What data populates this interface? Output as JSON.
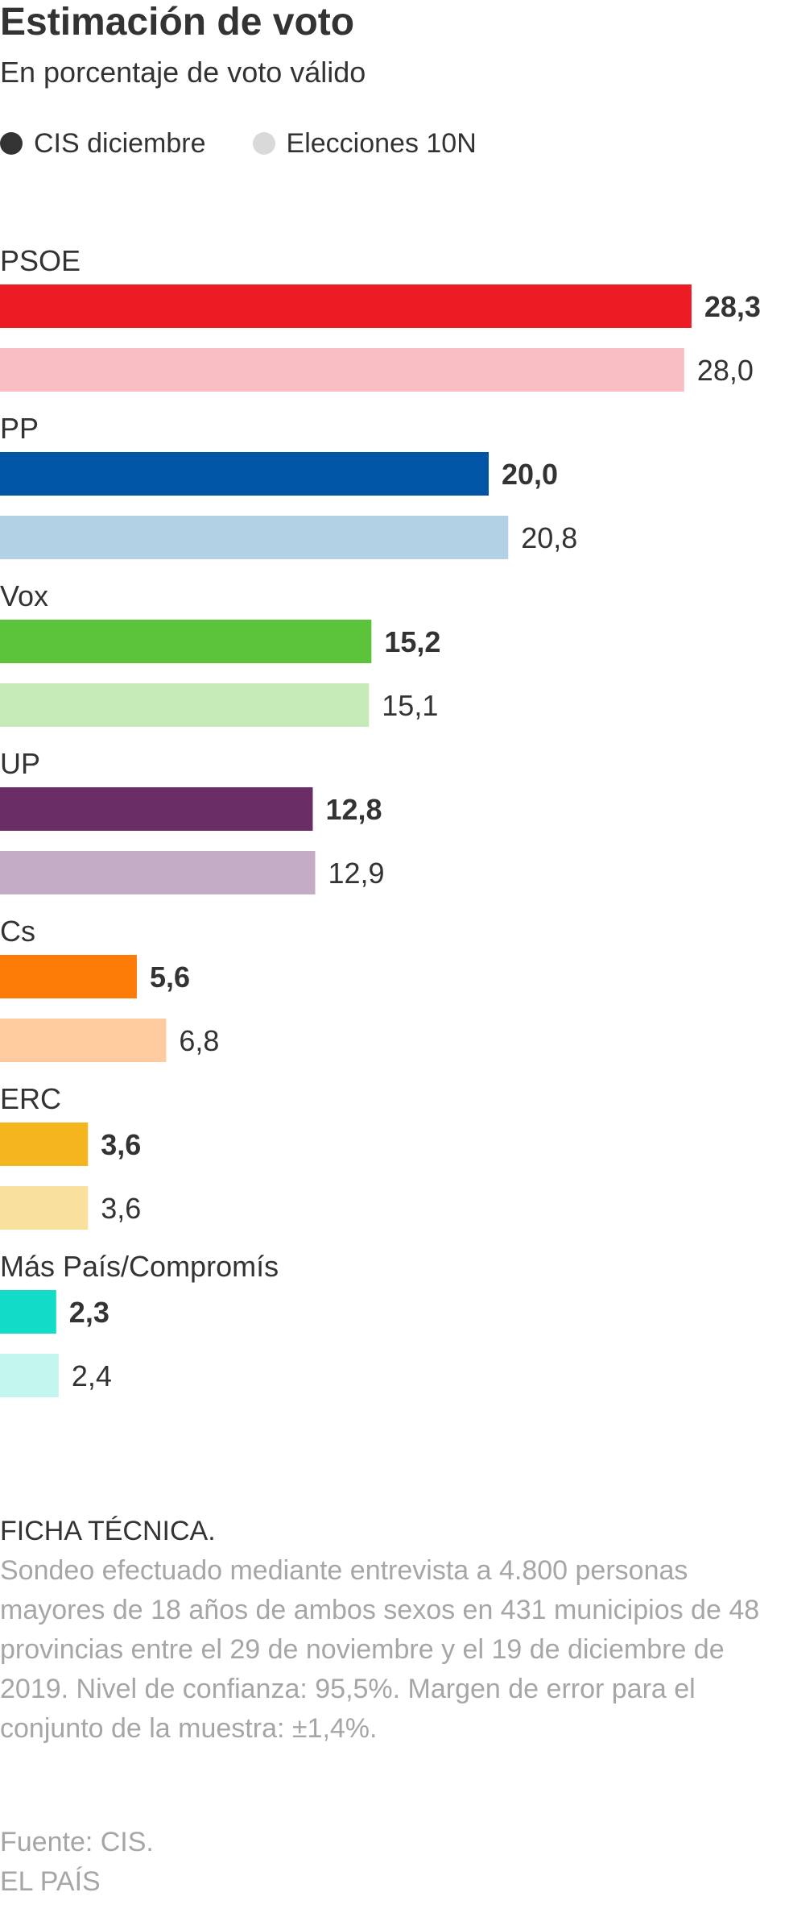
{
  "chart_data": {
    "type": "bar",
    "orientation": "horizontal",
    "title": "Estimación de voto",
    "subtitle": "En porcentaje de voto válido",
    "categories": [
      "PSOE",
      "PP",
      "Vox",
      "UP",
      "Cs",
      "ERC",
      "Más País/Compromís"
    ],
    "series": [
      {
        "name": "CIS diciembre",
        "values": [
          28.3,
          20.0,
          15.2,
          12.8,
          5.6,
          3.6,
          2.3
        ],
        "labels": [
          "28,3",
          "20,0",
          "15,2",
          "12,8",
          "5,6",
          "3,6",
          "2,3"
        ],
        "colors": [
          "#ed1c24",
          "#0055a6",
          "#5bc43b",
          "#6b2d65",
          "#fc7c07",
          "#f5b51e",
          "#12dbc8"
        ],
        "legend_color": "#333333"
      },
      {
        "name": "Elecciones 10N",
        "values": [
          28.0,
          20.8,
          15.1,
          12.9,
          6.8,
          3.6,
          2.4
        ],
        "labels": [
          "28,0",
          "20,8",
          "15,1",
          "12,9",
          "6,8",
          "3,6",
          "2,4"
        ],
        "colors": [
          "#f9bec2",
          "#b3d1e5",
          "#c6eab8",
          "#c5acc6",
          "#fecb9f",
          "#f9e09c",
          "#c2f6ef"
        ],
        "legend_color": "#d9d9d9"
      }
    ],
    "xlim": [
      0,
      30
    ],
    "grid": false,
    "legend_position": "top-left"
  },
  "notes": {
    "heading": "FICHA TÉCNICA.",
    "body": "Sondeo efectuado mediante entrevista a 4.800 personas mayores de 18 años de ambos sexos en 431 municipios de 48 provincias entre el 29 de noviembre y el 19 de diciembre de 2019. Nivel de confianza: 95,5%. Margen de error para el conjunto de la muestra: ±1,4%."
  },
  "source": {
    "line1": "Fuente: CIS.",
    "line2": "EL PAÍS"
  }
}
